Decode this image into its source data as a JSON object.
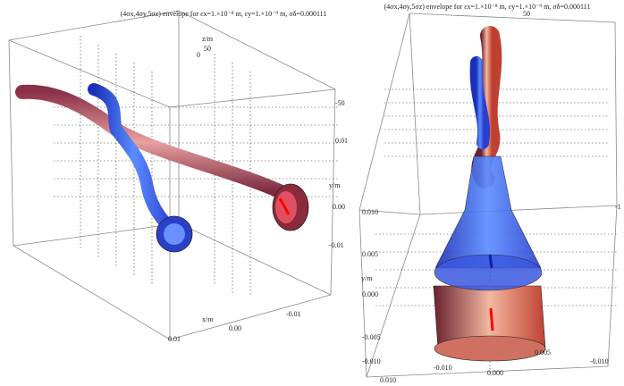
{
  "panels": [
    {
      "title": "(4σx,4σy,5σz) envelope for εx=1.×10⁻⁸ m, εy=1.×10⁻⁹ m, σδ=0.000111",
      "labels": [
        "z/m",
        "50",
        "0",
        "-50",
        "0.01",
        "y/m",
        "0.00",
        "-0.01",
        "-0.01",
        "0.00",
        "0.01",
        "x/m"
      ]
    },
    {
      "title": "(4σx,4σy,5σz) envelope for εx=1.×10⁻⁸ m, εy=1.×10⁻⁹ m, σδ=0.000111",
      "labels": [
        "50",
        "-1",
        "0.010",
        "0.005",
        "y/m",
        "0.000",
        "-0.005",
        "-0.010",
        "-0.010",
        "0.005",
        "0.000",
        "-0.010",
        "0.010"
      ]
    }
  ]
}
